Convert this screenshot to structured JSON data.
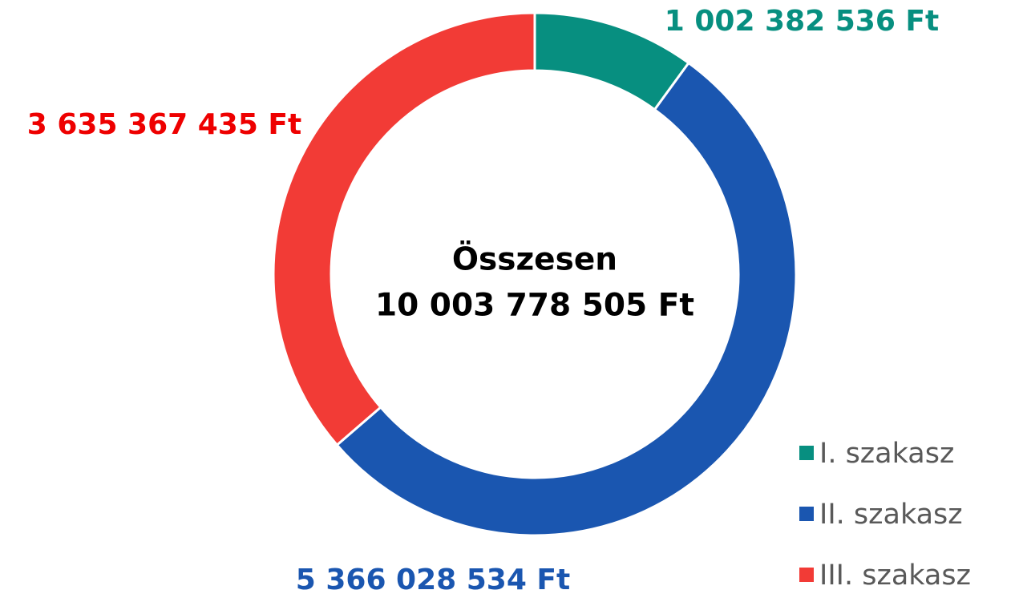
{
  "chart_data": {
    "type": "donut",
    "categories": [
      "I. szakasz",
      "II. szakasz",
      "III. szakasz"
    ],
    "values": [
      1002382536,
      5366028534,
      3635367435
    ],
    "value_labels": [
      "1 002 382 536 Ft",
      "5 366 028 534 Ft",
      "3 635 367 435 Ft"
    ],
    "colors": [
      "#078f80",
      "#1a56b0",
      "#f23b36"
    ],
    "center_text": [
      "Összesen",
      "10 003 778 505 Ft"
    ],
    "legend": "lower right"
  }
}
